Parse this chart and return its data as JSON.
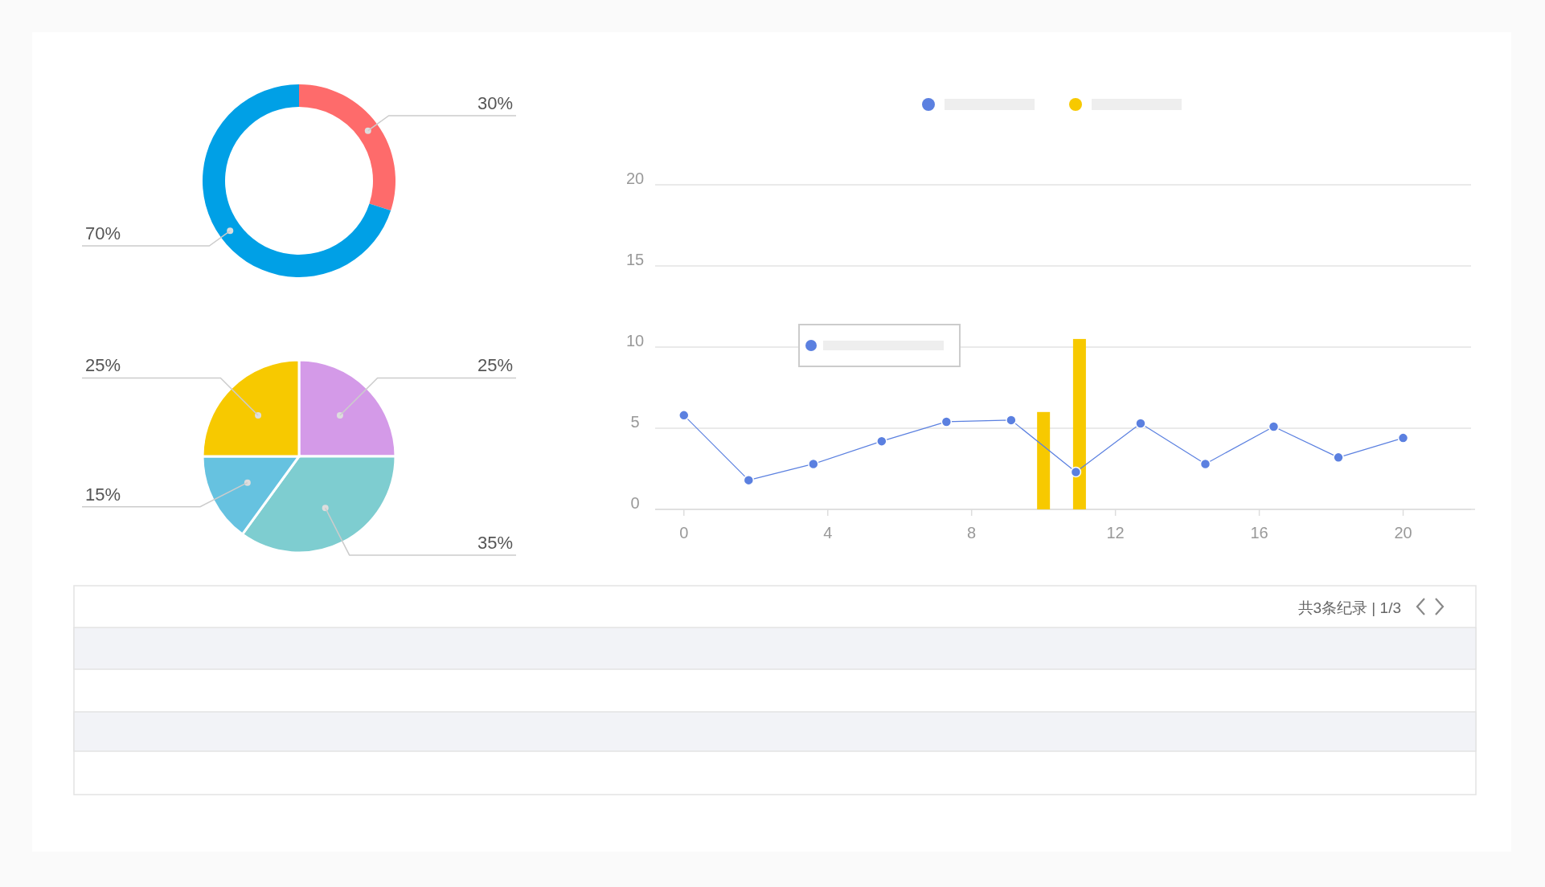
{
  "chart_data": [
    {
      "type": "donut",
      "categories": [
        null,
        null
      ],
      "values": [
        30,
        70
      ],
      "colors": [
        "#fe6b6b",
        "#00a0e6"
      ],
      "value_labels": [
        "30%",
        "70%"
      ]
    },
    {
      "type": "pie",
      "categories": [
        null,
        null,
        null,
        null
      ],
      "values": [
        25,
        35,
        15,
        25
      ],
      "colors": [
        "#d49ae8",
        "#7ecdd0",
        "#66c2e0",
        "#f7c900"
      ],
      "value_labels": [
        "25%",
        "35%",
        "15%",
        "25%"
      ]
    },
    {
      "type": "line",
      "xlim": [
        -0.8,
        22
      ],
      "xticks": [
        0,
        4,
        8,
        12,
        16,
        20
      ],
      "ylim": [
        0,
        20
      ],
      "yticks": [
        0,
        5,
        10,
        15,
        20
      ],
      "grid": "y",
      "marker": "circle",
      "series": [
        {
          "type": "line",
          "color": "#5b80e0",
          "x": [
            0,
            1.8,
            3.6,
            5.5,
            7.3,
            9.1,
            10.9,
            12.7,
            14.5,
            16.4,
            18.2,
            20
          ],
          "values": [
            5.8,
            1.8,
            2.8,
            4.2,
            5.4,
            5.5,
            2.3,
            5.3,
            2.8,
            5.1,
            3.2,
            4.4
          ]
        },
        {
          "type": "bar",
          "color": "#f7c900",
          "x": [
            10,
            11
          ],
          "values": [
            6,
            10.5
          ]
        }
      ]
    },
    {
      "type": "other",
      "annotations": [
        "共3条纪录 | 1/3"
      ]
    }
  ]
}
